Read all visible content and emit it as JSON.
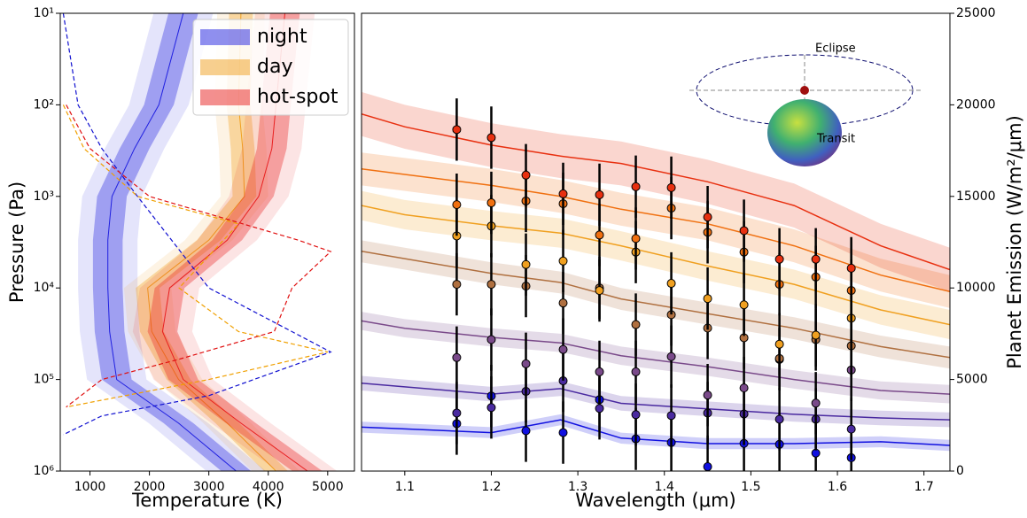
{
  "chart_data": [
    {
      "type": "profile",
      "xlabel": "Temperature (K)",
      "ylabel": "Pressure (Pa)",
      "xlim": [
        500,
        5450
      ],
      "xticks": [
        1000,
        2000,
        3000,
        4000,
        5000
      ],
      "ylim": [
        10,
        1000000
      ],
      "y_inverted": true,
      "log_y": true,
      "yticks": [
        {
          "value": 10,
          "label": "10¹"
        },
        {
          "value": 100,
          "label": "10²"
        },
        {
          "value": 1000,
          "label": "10³"
        },
        {
          "value": 10000,
          "label": "10⁴"
        },
        {
          "value": 100000,
          "label": "10⁵"
        },
        {
          "value": 1000000,
          "label": "10⁶"
        }
      ],
      "legend": "upper right",
      "y": [
        10,
        100,
        300,
        1000,
        3000,
        10000,
        30000,
        100000,
        300000,
        1000000
      ],
      "series": [
        {
          "name": "night",
          "color": "#2020e0",
          "values": [
            2570,
            2160,
            1750,
            1370,
            1300,
            1300,
            1330,
            1450,
            2490,
            3460
          ],
          "spread": 250
        },
        {
          "name": "day",
          "color": "#f0a020",
          "values": [
            3540,
            3500,
            3570,
            3600,
            3000,
            1970,
            2040,
            2490,
            3310,
            4130
          ],
          "spread": 200
        },
        {
          "name": "hot-spot",
          "color": "#e82020",
          "values": [
            4280,
            4130,
            4060,
            3840,
            3310,
            2340,
            2220,
            2570,
            3540,
            4660
          ],
          "spread": 250
        }
      ],
      "dashed": [
        {
          "color": "#1010d0",
          "values": [
            550,
            800,
            1200,
            1800,
            3000,
            5050,
            3000,
            1200,
            550
          ],
          "y": [
            10,
            100,
            300,
            1000,
            10000,
            50000,
            150000,
            250000,
            400000
          ]
        },
        {
          "color": "#f0a000",
          "values": [
            550,
            900,
            1800,
            3500,
            2500,
            3500,
            5000,
            3000,
            600
          ],
          "y": [
            100,
            300,
            1000,
            2000,
            10000,
            30000,
            50000,
            100000,
            200000
          ]
        },
        {
          "color": "#e01010",
          "values": [
            600,
            1000,
            2000,
            4500,
            5050,
            4400,
            4100,
            2500,
            1200,
            600
          ],
          "y": [
            100,
            300,
            1000,
            3000,
            4000,
            10000,
            30000,
            60000,
            100000,
            200000
          ]
        }
      ]
    },
    {
      "type": "spectrum",
      "xlabel": "Wavelength (μm)",
      "ylabel": "Planet Emission (W/m²/μm)",
      "xlim": [
        1.05,
        1.73
      ],
      "xticks": [
        1.1,
        1.2,
        1.3,
        1.4,
        1.5,
        1.6,
        1.7
      ],
      "ylim": [
        0,
        25000
      ],
      "yticks": [
        0,
        5000,
        10000,
        15000,
        20000,
        25000
      ],
      "y_axis_side": "right",
      "x": [
        1.05,
        1.1,
        1.2,
        1.28,
        1.35,
        1.45,
        1.55,
        1.65,
        1.73
      ],
      "points_x": [
        1.16,
        1.2,
        1.24,
        1.283,
        1.325,
        1.367,
        1.408,
        1.45,
        1.492,
        1.533,
        1.575,
        1.616
      ],
      "series": [
        {
          "color": "#1010e0",
          "values": [
            2400,
            2300,
            2100,
            2800,
            1800,
            1500,
            1500,
            1600,
            1400
          ],
          "spread": 300,
          "error": 1700,
          "points": [
            2590,
            4100,
            2200,
            2100,
            3900,
            1760,
            1560,
            240,
            1510,
            1460,
            980,
            730
          ]
        },
        {
          "color": "#4a2aa0",
          "values": [
            4800,
            4600,
            4200,
            4500,
            3700,
            3400,
            3100,
            2900,
            2800
          ],
          "spread": 400,
          "error": 1700,
          "points": [
            3170,
            3470,
            4350,
            4930,
            3420,
            3080,
            3030,
            3170,
            3120,
            2830,
            2830,
            2290
          ]
        },
        {
          "color": "#7a4a8a",
          "values": [
            8200,
            7800,
            7300,
            7000,
            6300,
            5700,
            5000,
            4400,
            4200
          ],
          "spread": 500,
          "error": 1700,
          "points": [
            6200,
            7180,
            5860,
            6640,
            5420,
            5420,
            6250,
            4150,
            4540,
            6100,
            3710,
            5520
          ]
        },
        {
          "color": "#b07040",
          "values": [
            12000,
            11600,
            10800,
            10300,
            9400,
            8600,
            7800,
            6800,
            6200
          ],
          "spread": 600,
          "error": 1700,
          "points": [
            10200,
            10200,
            10100,
            9180,
            10000,
            8000,
            8540,
            7810,
            7280,
            6150,
            7180,
            6840
          ]
        },
        {
          "color": "#f0a020",
          "values": [
            14500,
            14000,
            13400,
            13000,
            12300,
            11200,
            10200,
            8800,
            8000
          ],
          "spread": 800,
          "error": 1700,
          "points": [
            12840,
            13380,
            11280,
            11470,
            9860,
            11960,
            10250,
            9420,
            9080,
            6930,
            7420,
            8350
          ]
        },
        {
          "color": "#f07010",
          "values": [
            16500,
            16200,
            15600,
            15000,
            14300,
            13500,
            12300,
            10700,
            9800
          ],
          "spread": 900,
          "error": 1700,
          "points": [
            14550,
            14650,
            14750,
            14600,
            12890,
            12700,
            14360,
            13040,
            11960,
            10200,
            10600,
            9860
          ]
        },
        {
          "color": "#e83010",
          "values": [
            19500,
            18800,
            17800,
            17200,
            16800,
            15800,
            14500,
            12300,
            11000
          ],
          "spread": 1200,
          "error": 1700,
          "points": [
            18650,
            18210,
            16160,
            15140,
            15090,
            15530,
            15480,
            13870,
            13130,
            11570,
            11570,
            11080
          ]
        }
      ],
      "annotations": [
        "Eclipse",
        "Transit"
      ]
    }
  ]
}
